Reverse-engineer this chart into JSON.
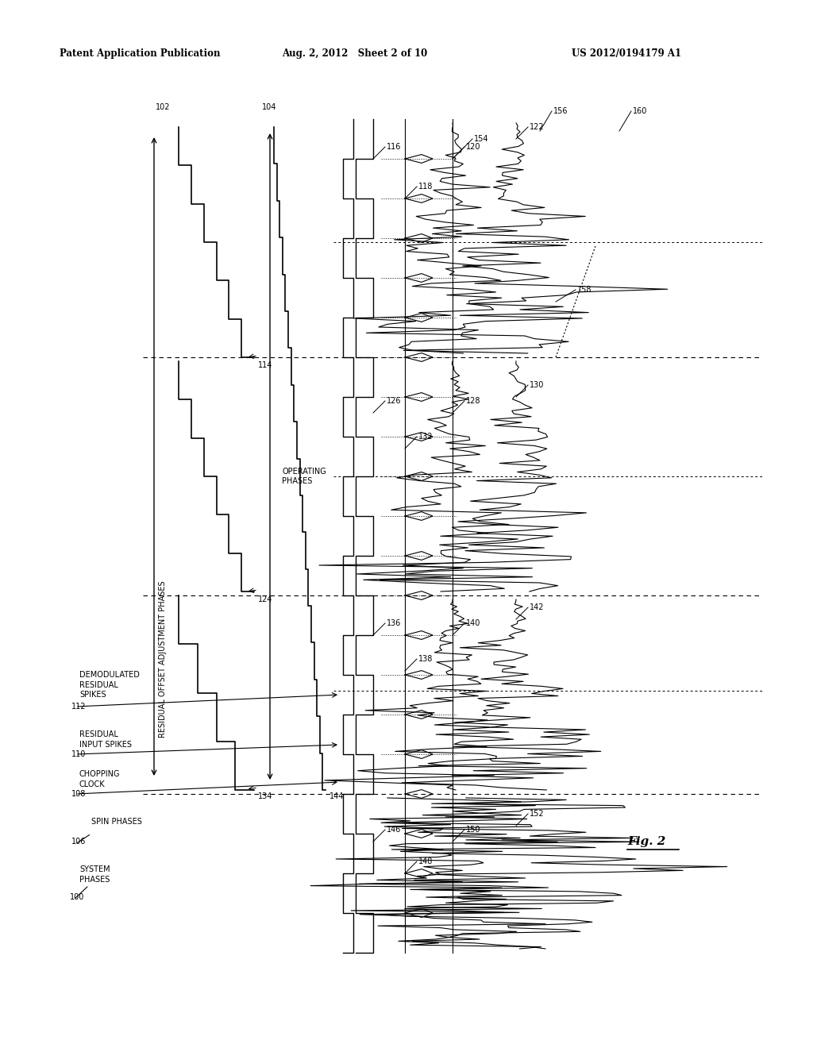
{
  "title_left": "Patent Application Publication",
  "title_center": "Aug. 2, 2012   Sheet 2 of 10",
  "title_right": "US 2012/0194179 A1",
  "fig_label": "Fig. 2",
  "bg_color": "#ffffff",
  "text_color": "#000000"
}
